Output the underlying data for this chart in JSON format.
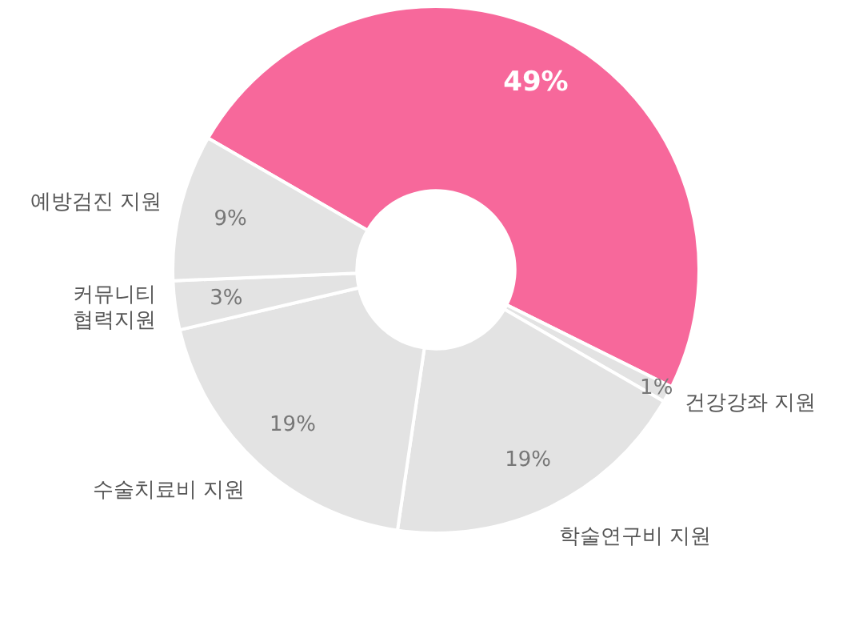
{
  "chart_data": {
    "type": "donut",
    "categories": [
      null,
      "건강강좌 지원",
      "학술연구비 지원",
      "수술치료비 지원",
      "커뮤니티 협력지원",
      "예방검진 지원"
    ],
    "values": [
      49,
      1,
      19,
      19,
      3,
      9
    ],
    "colors": [
      "#f7689b",
      "#e3e3e3",
      "#e3e3e3",
      "#e3e3e3",
      "#e3e3e3",
      "#e3e3e3"
    ],
    "value_labels": [
      "49%",
      "1%",
      "19%",
      "19%",
      "3%",
      "9%"
    ],
    "legend": false
  }
}
